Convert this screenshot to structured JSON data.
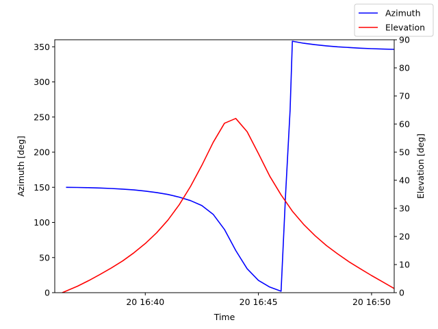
{
  "chart_data": {
    "type": "line",
    "title": "",
    "xlabel": "Time",
    "x_axis": {
      "range": [
        "16:36",
        "16:51"
      ],
      "ticks": [
        {
          "time": "16:40",
          "label": "20 16:40"
        },
        {
          "time": "16:45",
          "label": "20 16:45"
        },
        {
          "time": "16:50",
          "label": "20 16:50"
        }
      ]
    },
    "y_left": {
      "label": "Azimuth [deg]",
      "range": [
        0,
        360
      ],
      "ticks": [
        "0",
        "50",
        "100",
        "150",
        "200",
        "250",
        "300",
        "350"
      ]
    },
    "y_right": {
      "label": "Elevation [deg]",
      "range": [
        0,
        90
      ],
      "ticks": [
        "0",
        "10",
        "20",
        "30",
        "40",
        "50",
        "60",
        "70",
        "80",
        "90"
      ]
    },
    "legend": {
      "position": "top-right"
    },
    "grid": false,
    "series": [
      {
        "name": "Azimuth",
        "axis": "left",
        "color": "#0000ff",
        "points": [
          [
            "16:36:30",
            150
          ],
          [
            "16:37:00",
            149.8
          ],
          [
            "16:37:30",
            149.5
          ],
          [
            "16:38:00",
            149
          ],
          [
            "16:38:30",
            148.3
          ],
          [
            "16:39:00",
            147.4
          ],
          [
            "16:39:30",
            146.2
          ],
          [
            "16:40:00",
            144.6
          ],
          [
            "16:40:30",
            142.5
          ],
          [
            "16:41:00",
            139.8
          ],
          [
            "16:41:30",
            136
          ],
          [
            "16:42:00",
            131
          ],
          [
            "16:42:30",
            124
          ],
          [
            "16:43:00",
            111.5
          ],
          [
            "16:43:30",
            90
          ],
          [
            "16:44:00",
            60
          ],
          [
            "16:44:30",
            34
          ],
          [
            "16:45:00",
            17.5
          ],
          [
            "16:45:30",
            8
          ],
          [
            "16:46:00",
            2
          ],
          [
            "16:46:12",
            140
          ],
          [
            "16:46:24",
            260
          ],
          [
            "16:46:30",
            358
          ],
          [
            "16:47:00",
            355
          ],
          [
            "16:47:30",
            353
          ],
          [
            "16:48:00",
            351.3
          ],
          [
            "16:48:30",
            350
          ],
          [
            "16:49:00",
            349
          ],
          [
            "16:49:30",
            348
          ],
          [
            "16:50:00",
            347.3
          ],
          [
            "16:50:30",
            346.7
          ],
          [
            "16:51:00",
            346.3
          ]
        ]
      },
      {
        "name": "Elevation",
        "axis": "right",
        "color": "#ff0000",
        "points": [
          [
            "16:36:20",
            0
          ],
          [
            "16:37:00",
            2.3
          ],
          [
            "16:37:30",
            4.3
          ],
          [
            "16:38:00",
            6.5
          ],
          [
            "16:38:30",
            8.8
          ],
          [
            "16:39:00",
            11.3
          ],
          [
            "16:39:30",
            14.2
          ],
          [
            "16:40:00",
            17.5
          ],
          [
            "16:40:30",
            21.3
          ],
          [
            "16:41:00",
            25.8
          ],
          [
            "16:41:30",
            31.3
          ],
          [
            "16:42:00",
            37.8
          ],
          [
            "16:42:30",
            45.3
          ],
          [
            "16:43:00",
            53.5
          ],
          [
            "16:43:30",
            60.3
          ],
          [
            "16:44:00",
            62
          ],
          [
            "16:44:30",
            57.3
          ],
          [
            "16:45:00",
            49.5
          ],
          [
            "16:45:30",
            41.5
          ],
          [
            "16:46:00",
            34.8
          ],
          [
            "16:46:30",
            29
          ],
          [
            "16:47:00",
            24.3
          ],
          [
            "16:47:30",
            20.3
          ],
          [
            "16:48:00",
            16.8
          ],
          [
            "16:48:30",
            13.8
          ],
          [
            "16:49:00",
            11
          ],
          [
            "16:49:30",
            8.5
          ],
          [
            "16:50:00",
            6.1
          ],
          [
            "16:50:30",
            3.8
          ],
          [
            "16:51:00",
            1.5
          ]
        ]
      }
    ]
  }
}
